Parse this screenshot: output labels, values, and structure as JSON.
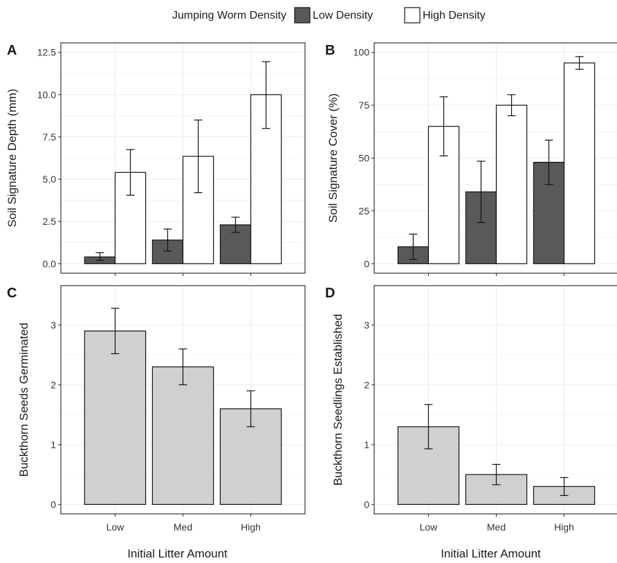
{
  "legend": {
    "title": "Jumping Worm Density",
    "items": [
      {
        "label": "Low Density",
        "color": "#595959"
      },
      {
        "label": "High Density",
        "color": "#ffffff"
      }
    ]
  },
  "colors": {
    "low_density": "#595959",
    "high_density": "#ffffff",
    "single": "#cfd0cf",
    "stroke": "#111111",
    "grid": "#ebebeb"
  },
  "chart_data": [
    {
      "panel": "A",
      "type": "bar",
      "categories": [
        "Low",
        "Med",
        "High"
      ],
      "ylabel": "Soil Signature Depth (mm)",
      "xlabel": "",
      "ylim": [
        0,
        12.5
      ],
      "yticks": [
        0,
        2.5,
        5,
        7.5,
        10,
        12.5
      ],
      "ytick_labels": [
        "0.0",
        "2.5",
        "5.0",
        "7.5",
        "10.0",
        "12.5"
      ],
      "grid": true,
      "show_x_tick_labels": false,
      "series": [
        {
          "name": "Low Density",
          "values": [
            0.4,
            1.4,
            2.3
          ],
          "err_low": [
            0.2,
            0.75,
            1.85
          ],
          "err_high": [
            0.65,
            2.05,
            2.75
          ]
        },
        {
          "name": "High Density",
          "values": [
            5.4,
            6.35,
            10.0
          ],
          "err_low": [
            4.05,
            4.2,
            8.0
          ],
          "err_high": [
            6.75,
            8.5,
            11.95
          ]
        }
      ]
    },
    {
      "panel": "B",
      "type": "bar",
      "categories": [
        "Low",
        "Med",
        "High"
      ],
      "ylabel": "Soil Signature Cover (%)",
      "xlabel": "",
      "ylim": [
        0,
        100
      ],
      "yticks": [
        0,
        25,
        50,
        75,
        100
      ],
      "ytick_labels": [
        "0",
        "25",
        "50",
        "75",
        "100"
      ],
      "grid": true,
      "show_x_tick_labels": false,
      "series": [
        {
          "name": "Low Density",
          "values": [
            8,
            34,
            48
          ],
          "err_low": [
            2,
            19.5,
            37.5
          ],
          "err_high": [
            14,
            48.5,
            58.5
          ]
        },
        {
          "name": "High Density",
          "values": [
            65,
            75,
            95
          ],
          "err_low": [
            51,
            70,
            92
          ],
          "err_high": [
            79,
            80,
            98
          ]
        }
      ]
    },
    {
      "panel": "C",
      "type": "bar",
      "categories": [
        "Low",
        "Med",
        "High"
      ],
      "ylabel": "Buckthorn Seeds Germinated",
      "xlabel": "Initial Litter Amount",
      "ylim": [
        0,
        3.5
      ],
      "yticks": [
        0,
        1,
        2,
        3
      ],
      "ytick_labels": [
        "0",
        "1",
        "2",
        "3"
      ],
      "grid": true,
      "show_x_tick_labels": true,
      "series": [
        {
          "values": [
            2.9,
            2.3,
            1.6
          ],
          "err_low": [
            2.52,
            2.0,
            1.3
          ],
          "err_high": [
            3.28,
            2.6,
            1.9
          ]
        }
      ]
    },
    {
      "panel": "D",
      "type": "bar",
      "categories": [
        "Low",
        "Med",
        "High"
      ],
      "ylabel": "Buckthorn Seedlings Established",
      "xlabel": "Initial Litter Amount",
      "ylim": [
        0,
        3.5
      ],
      "yticks": [
        0,
        1,
        2,
        3
      ],
      "ytick_labels": [
        "0",
        "1",
        "2",
        "3"
      ],
      "grid": true,
      "show_x_tick_labels": true,
      "series": [
        {
          "values": [
            1.3,
            0.5,
            0.3
          ],
          "err_low": [
            0.93,
            0.33,
            0.15
          ],
          "err_high": [
            1.67,
            0.67,
            0.45
          ]
        }
      ]
    }
  ]
}
